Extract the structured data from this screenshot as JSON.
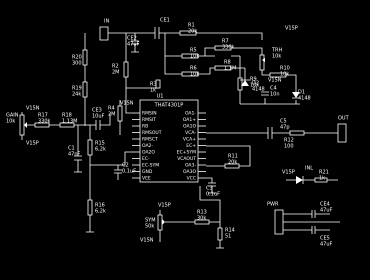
{
  "parts": [
    {
      "ref": "CE1"
    },
    {
      "ref": "CE2",
      "value": "47uF"
    },
    {
      "ref": "R1",
      "value": "20k"
    },
    {
      "ref": "R20",
      "value": "300"
    },
    {
      "ref": "R19",
      "value": "24k"
    },
    {
      "ref": "R2",
      "value": "2M"
    },
    {
      "ref": "R3",
      "value": "1k"
    },
    {
      "ref": "R5",
      "value": "10k"
    },
    {
      "ref": "R6",
      "value": "10k"
    },
    {
      "ref": "R7",
      "value": "330k"
    },
    {
      "ref": "R8",
      "value": "1,1M"
    },
    {
      "ref": "TRH",
      "value": "10k"
    },
    {
      "ref": "R9",
      "value": "10k"
    },
    {
      "ref": "R10",
      "value": "10k"
    },
    {
      "ref": "D1",
      "value": "4148"
    },
    {
      "ref": "C4",
      "value": "10n"
    },
    {
      "ref": "D2",
      "value": "4148"
    },
    {
      "ref": "R4",
      "value": "2M"
    },
    {
      "ref": "GAIN",
      "value": "10k"
    },
    {
      "ref": "R17",
      "value": "330k"
    },
    {
      "ref": "R18",
      "value": "1,13M"
    },
    {
      "ref": "CE3",
      "value": "10uF"
    },
    {
      "ref": "C1",
      "value": "47nF"
    },
    {
      "ref": "R15",
      "value": "6,2k"
    },
    {
      "ref": "R16",
      "value": "6,2k"
    },
    {
      "ref": "C2",
      "value": "0,1uF"
    },
    {
      "ref": "C3",
      "value": "0,1uF"
    },
    {
      "ref": "R11",
      "value": "20k"
    },
    {
      "ref": "C5",
      "value": "47p"
    },
    {
      "ref": "R12",
      "value": "100"
    },
    {
      "ref": "R21",
      "value": "1k"
    },
    {
      "ref": "CE4",
      "value": "47uF"
    },
    {
      "ref": "CE5",
      "value": "47uF"
    },
    {
      "ref": "SYM",
      "value": "50k"
    },
    {
      "ref": "R13",
      "value": "30k"
    },
    {
      "ref": "R14",
      "value": "51"
    }
  ],
  "connectors": [
    {
      "label": "IN"
    },
    {
      "label": "OUT"
    },
    {
      "label": "INL"
    },
    {
      "label": "PWR"
    }
  ],
  "power_labels": [
    "V15P",
    "V15N",
    "V15N",
    "V15N",
    "V15P",
    "V15P",
    "V15P",
    "V15N"
  ],
  "ic": {
    "ref": "U1",
    "part": "THAT4301P",
    "left_pins": [
      "RMSIN",
      "RMSIT",
      "RB",
      "RMSOUT",
      "RMSCT",
      "OA2-",
      "OA2O",
      "EC-",
      "EC-SYM",
      "GND",
      "VEE"
    ],
    "right_pins": [
      "OA1-",
      "OA1+",
      "OA1O",
      "VCA-",
      "VCA+",
      "EC+",
      "EC+SYM",
      "VCAOUT",
      "OA3-",
      "OA3O",
      "VCC"
    ]
  }
}
